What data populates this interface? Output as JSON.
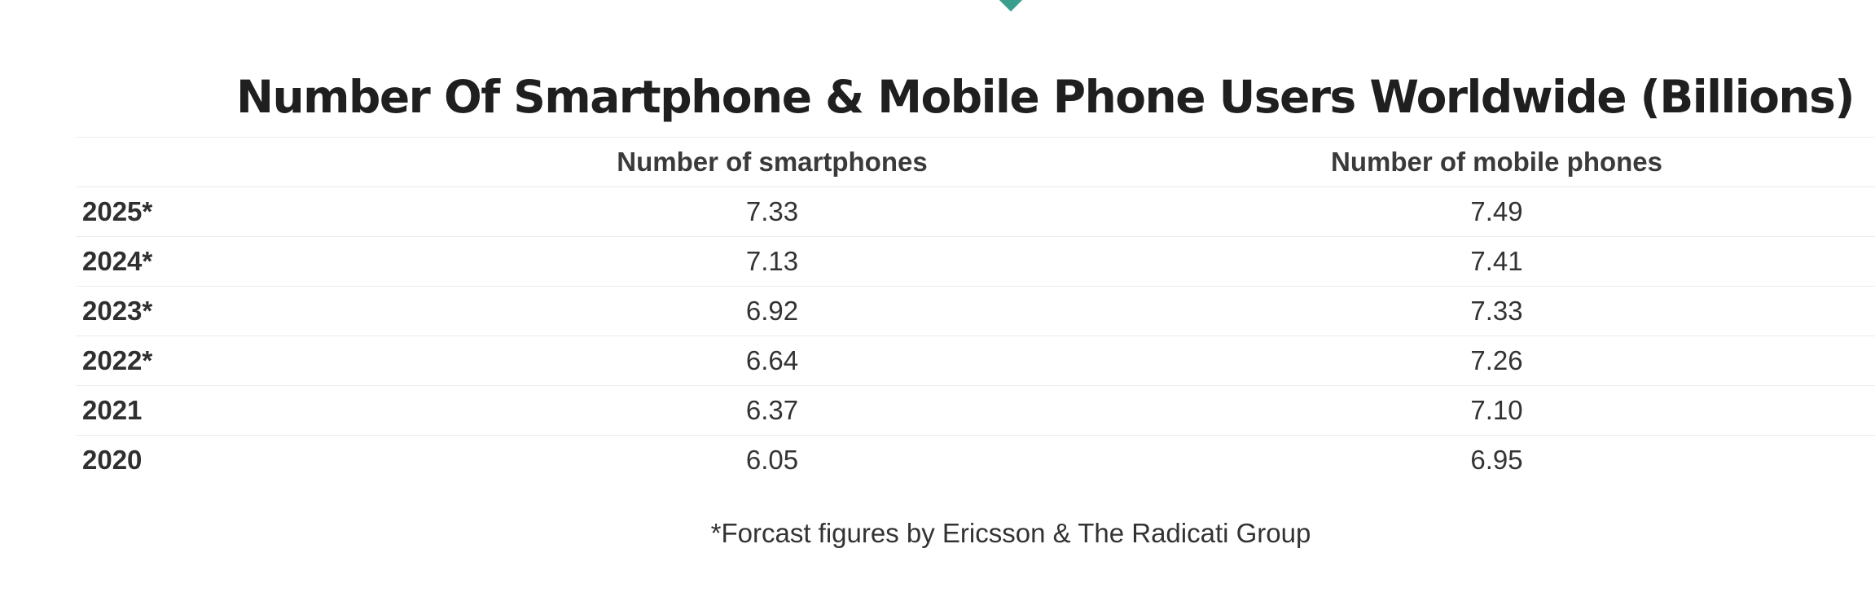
{
  "title": "Number Of Smartphone & Mobile Phone Users Worldwide (Billions)",
  "table": {
    "headers": [
      "",
      "Number of smartphones",
      "Number of mobile phones"
    ],
    "rows": [
      {
        "year": "2025*",
        "smartphones": "7.33",
        "mobile_phones": "7.49"
      },
      {
        "year": "2024*",
        "smartphones": "7.13",
        "mobile_phones": "7.41"
      },
      {
        "year": "2023*",
        "smartphones": "6.92",
        "mobile_phones": "7.33"
      },
      {
        "year": "2022*",
        "smartphones": "6.64",
        "mobile_phones": "7.26"
      },
      {
        "year": "2021",
        "smartphones": "6.37",
        "mobile_phones": "7.10"
      },
      {
        "year": "2020",
        "smartphones": "6.05",
        "mobile_phones": "6.95"
      }
    ]
  },
  "footnote": "*Forcast figures by Ericsson & The Radicati Group",
  "colors": {
    "accent": "#3a9e8c",
    "title": "#1f1f1f",
    "text": "#2f2f2f",
    "divider": "#ececec"
  }
}
